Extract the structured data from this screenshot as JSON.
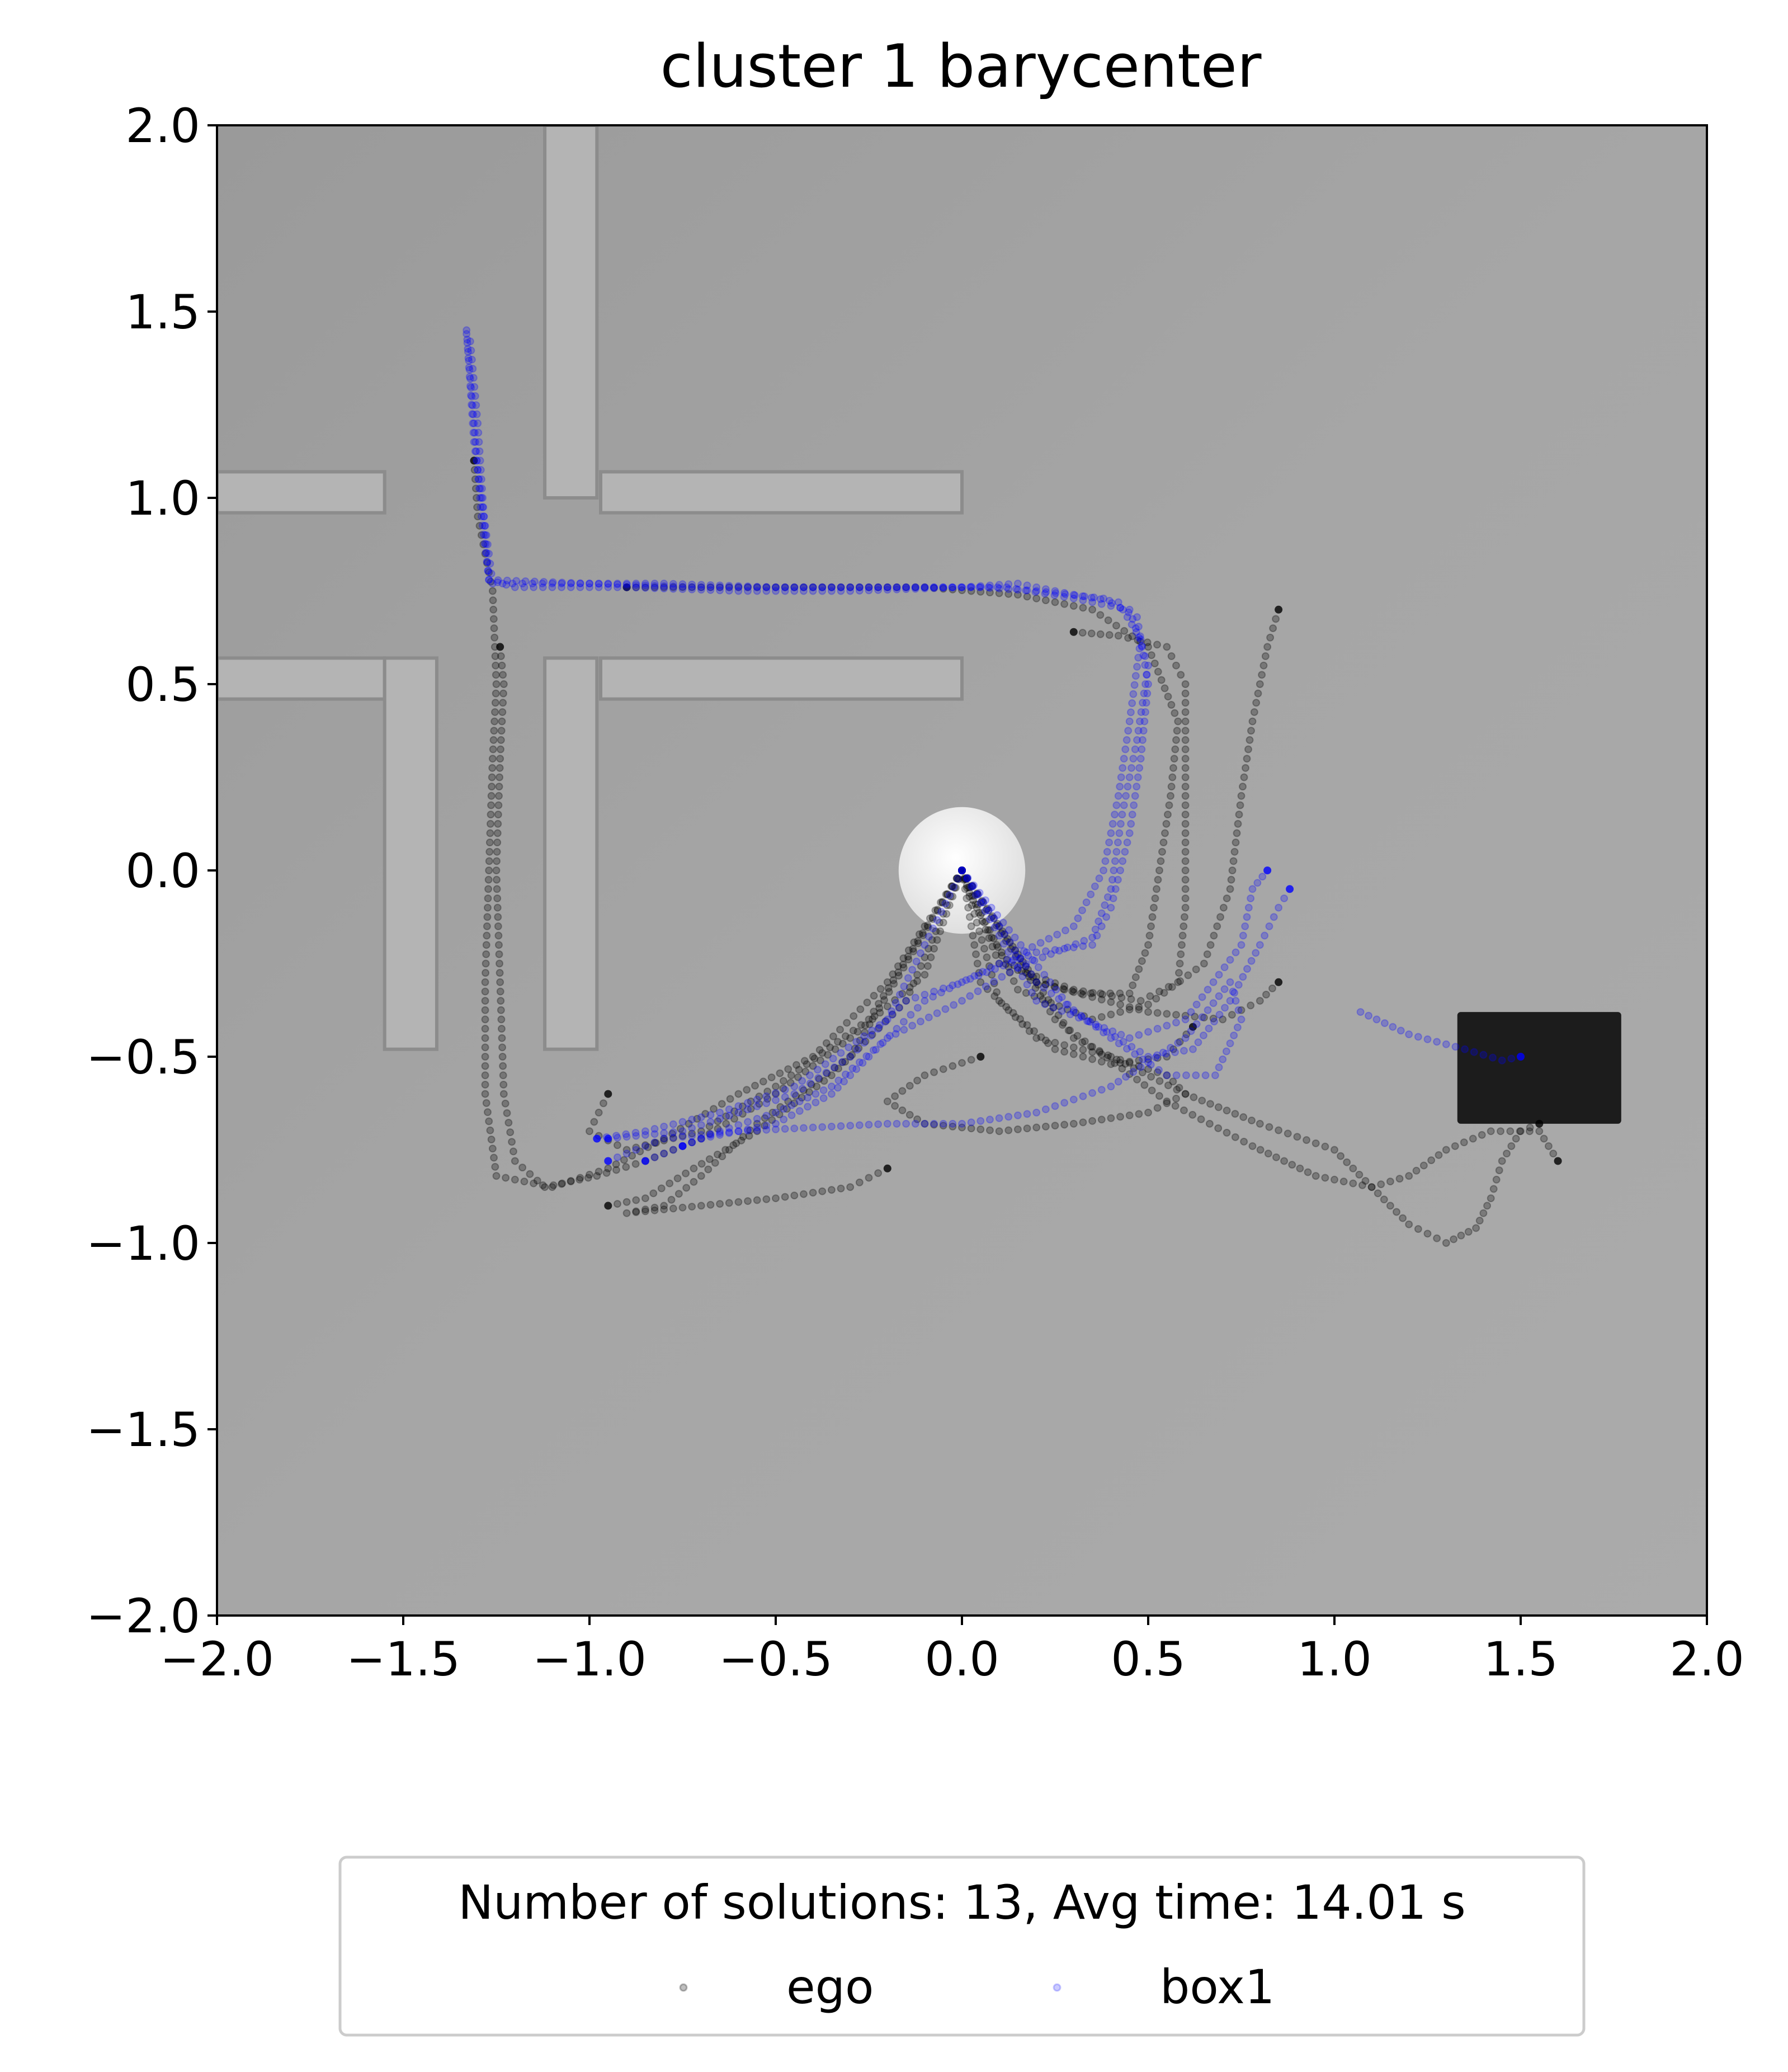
{
  "chart_data": {
    "type": "scatter",
    "title": "cluster 1 barycenter",
    "xlim": [
      -2.0,
      2.0
    ],
    "ylim": [
      -2.0,
      2.0
    ],
    "xticks": [
      "−2.0",
      "−1.5",
      "−1.0",
      "−0.5",
      "0.0",
      "0.5",
      "1.0",
      "1.5",
      "2.0"
    ],
    "yticks": [
      "2.0",
      "1.5",
      "1.0",
      "0.5",
      "0.0",
      "−0.5",
      "−1.0",
      "−1.5",
      "−2.0"
    ],
    "xtick_values": [
      -2.0,
      -1.5,
      -1.0,
      -0.5,
      0.0,
      0.5,
      1.0,
      1.5,
      2.0
    ],
    "ytick_values": [
      2.0,
      1.5,
      1.0,
      0.5,
      0.0,
      -0.5,
      -1.0,
      -1.5,
      -2.0
    ],
    "grid": false,
    "legend_position": "bottom-center",
    "legend_title": "Number of solutions: 13, Avg time: 14.01 s",
    "series": [
      {
        "name": "ego",
        "color": "#000000",
        "trajectories": [
          [
            [
              0.0,
              0.0
            ],
            [
              0.02,
              -0.06
            ],
            [
              0.05,
              -0.12
            ],
            [
              0.08,
              -0.18
            ],
            [
              0.12,
              -0.24
            ],
            [
              0.2,
              -0.3
            ],
            [
              0.32,
              -0.33
            ],
            [
              0.45,
              -0.33
            ],
            [
              0.5,
              -0.2
            ],
            [
              0.53,
              0.0
            ],
            [
              0.56,
              0.2
            ],
            [
              0.58,
              0.4
            ],
            [
              0.5,
              0.6
            ],
            [
              0.35,
              0.7
            ],
            [
              0.15,
              0.74
            ],
            [
              -0.1,
              0.76
            ],
            [
              -0.4,
              0.76
            ],
            [
              -0.7,
              0.76
            ],
            [
              -0.9,
              0.76
            ]
          ],
          [
            [
              0.0,
              0.0
            ],
            [
              0.1,
              -0.25
            ],
            [
              0.3,
              -0.32
            ],
            [
              0.48,
              -0.35
            ],
            [
              0.58,
              -0.3
            ],
            [
              0.6,
              -0.1
            ],
            [
              0.6,
              0.1
            ],
            [
              0.6,
              0.3
            ],
            [
              0.6,
              0.5
            ],
            [
              0.55,
              0.6
            ],
            [
              0.42,
              0.63
            ],
            [
              0.3,
              0.64
            ]
          ],
          [
            [
              0.0,
              0.0
            ],
            [
              -0.1,
              -0.28
            ],
            [
              -0.3,
              -0.45
            ],
            [
              -0.5,
              -0.6
            ],
            [
              -0.7,
              -0.72
            ],
            [
              -0.85,
              -0.78
            ],
            [
              -0.98,
              -0.82
            ],
            [
              -1.12,
              -0.85
            ],
            [
              -1.2,
              -0.78
            ],
            [
              -1.23,
              -0.6
            ],
            [
              -1.24,
              -0.3
            ],
            [
              -1.25,
              0.0
            ],
            [
              -1.24,
              0.3
            ],
            [
              -1.23,
              0.5
            ],
            [
              -1.24,
              0.6
            ]
          ],
          [
            [
              0.0,
              0.0
            ],
            [
              -0.2,
              -0.3
            ],
            [
              -0.4,
              -0.5
            ],
            [
              -0.6,
              -0.6
            ],
            [
              -0.8,
              -0.72
            ],
            [
              -0.95,
              -0.8
            ],
            [
              -1.1,
              -0.85
            ],
            [
              -1.25,
              -0.82
            ],
            [
              -1.28,
              -0.6
            ],
            [
              -1.28,
              -0.3
            ],
            [
              -1.27,
              0.0
            ],
            [
              -1.26,
              0.3
            ],
            [
              -1.25,
              0.5
            ],
            [
              -1.26,
              0.75
            ],
            [
              -1.3,
              0.95
            ],
            [
              -1.31,
              1.1
            ]
          ],
          [
            [
              0.0,
              0.0
            ],
            [
              0.05,
              -0.3
            ],
            [
              0.2,
              -0.45
            ],
            [
              0.4,
              -0.5
            ],
            [
              0.55,
              -0.55
            ],
            [
              0.6,
              -0.6
            ],
            [
              0.5,
              -0.65
            ],
            [
              0.3,
              -0.68
            ],
            [
              0.1,
              -0.7
            ],
            [
              -0.1,
              -0.68
            ],
            [
              -0.2,
              -0.62
            ],
            [
              -0.1,
              -0.55
            ],
            [
              0.05,
              -0.5
            ]
          ],
          [
            [
              0.0,
              0.0
            ],
            [
              0.2,
              -0.3
            ],
            [
              0.5,
              -0.38
            ],
            [
              0.7,
              -0.4
            ],
            [
              0.8,
              -0.35
            ],
            [
              0.85,
              -0.3
            ]
          ],
          [
            [
              0.0,
              0.0
            ],
            [
              -0.3,
              -0.5
            ],
            [
              -0.55,
              -0.68
            ],
            [
              -0.7,
              -0.82
            ],
            [
              -0.8,
              -0.9
            ],
            [
              -0.9,
              -0.92
            ],
            [
              -0.7,
              -0.9
            ],
            [
              -0.5,
              -0.88
            ],
            [
              -0.3,
              -0.85
            ],
            [
              -0.2,
              -0.8
            ]
          ],
          [
            [
              0.0,
              0.0
            ],
            [
              0.3,
              -0.45
            ],
            [
              0.6,
              -0.6
            ],
            [
              0.8,
              -0.68
            ],
            [
              1.0,
              -0.75
            ],
            [
              1.1,
              -0.85
            ],
            [
              1.2,
              -0.95
            ],
            [
              1.3,
              -1.0
            ],
            [
              1.38,
              -0.96
            ],
            [
              1.42,
              -0.88
            ],
            [
              1.45,
              -0.78
            ],
            [
              1.5,
              -0.7
            ],
            [
              1.55,
              -0.68
            ]
          ],
          [
            [
              0.0,
              0.0
            ],
            [
              0.25,
              -0.4
            ],
            [
              0.55,
              -0.62
            ],
            [
              0.78,
              -0.74
            ],
            [
              0.95,
              -0.82
            ],
            [
              1.1,
              -0.85
            ],
            [
              1.2,
              -0.82
            ],
            [
              1.3,
              -0.75
            ],
            [
              1.42,
              -0.7
            ],
            [
              1.55,
              -0.7
            ],
            [
              1.6,
              -0.78
            ]
          ],
          [
            [
              0.0,
              0.0
            ],
            [
              -0.15,
              -0.35
            ],
            [
              -0.35,
              -0.55
            ],
            [
              -0.55,
              -0.7
            ],
            [
              -0.72,
              -0.8
            ],
            [
              -0.85,
              -0.88
            ],
            [
              -0.95,
              -0.9
            ]
          ],
          [
            [
              0.0,
              0.0
            ],
            [
              0.15,
              -0.32
            ],
            [
              0.35,
              -0.4
            ],
            [
              0.5,
              -0.36
            ],
            [
              0.65,
              -0.25
            ],
            [
              0.72,
              -0.05
            ],
            [
              0.75,
              0.2
            ],
            [
              0.78,
              0.4
            ],
            [
              0.82,
              0.6
            ],
            [
              0.85,
              0.7
            ]
          ],
          [
            [
              0.0,
              0.0
            ],
            [
              -0.25,
              -0.4
            ],
            [
              -0.5,
              -0.58
            ],
            [
              -0.7,
              -0.7
            ],
            [
              -0.9,
              -0.75
            ],
            [
              -1.0,
              -0.7
            ],
            [
              -0.95,
              -0.6
            ]
          ],
          [
            [
              0.0,
              0.0
            ],
            [
              0.1,
              -0.35
            ],
            [
              0.25,
              -0.48
            ],
            [
              0.4,
              -0.52
            ],
            [
              0.55,
              -0.5
            ],
            [
              0.62,
              -0.42
            ]
          ]
        ]
      },
      {
        "name": "box1",
        "color": "#0000ff",
        "trajectories": [
          [
            [
              -1.33,
              1.45
            ],
            [
              -1.32,
              1.3
            ],
            [
              -1.31,
              1.15
            ],
            [
              -1.29,
              1.0
            ],
            [
              -1.27,
              0.85
            ],
            [
              -1.26,
              0.77
            ],
            [
              -1.1,
              0.77
            ],
            [
              -0.8,
              0.77
            ],
            [
              -0.5,
              0.76
            ],
            [
              -0.2,
              0.76
            ],
            [
              0.05,
              0.76
            ],
            [
              0.2,
              0.75
            ],
            [
              0.38,
              0.73
            ],
            [
              0.47,
              0.68
            ],
            [
              0.5,
              0.5
            ],
            [
              0.48,
              0.3
            ],
            [
              0.45,
              0.1
            ],
            [
              0.4,
              -0.1
            ],
            [
              0.35,
              -0.2
            ],
            [
              0.2,
              -0.22
            ],
            [
              0.0,
              -0.3
            ],
            [
              -0.15,
              -0.35
            ],
            [
              -0.3,
              -0.5
            ],
            [
              -0.45,
              -0.6
            ],
            [
              -0.6,
              -0.65
            ],
            [
              -0.75,
              -0.7
            ],
            [
              -0.95,
              -0.72
            ]
          ],
          [
            [
              -1.33,
              1.44
            ],
            [
              -1.31,
              1.2
            ],
            [
              -1.29,
              0.95
            ],
            [
              -1.27,
              0.78
            ],
            [
              -1.2,
              0.76
            ],
            [
              -0.9,
              0.76
            ],
            [
              -0.6,
              0.75
            ],
            [
              -0.3,
              0.75
            ],
            [
              0.0,
              0.76
            ],
            [
              0.15,
              0.77
            ],
            [
              0.3,
              0.74
            ],
            [
              0.42,
              0.72
            ],
            [
              0.48,
              0.62
            ],
            [
              0.45,
              0.4
            ],
            [
              0.42,
              0.2
            ],
            [
              0.38,
              0.0
            ],
            [
              0.3,
              -0.15
            ],
            [
              0.1,
              -0.25
            ],
            [
              -0.1,
              -0.35
            ],
            [
              -0.25,
              -0.5
            ],
            [
              -0.35,
              -0.6
            ],
            [
              -0.5,
              -0.68
            ],
            [
              -0.7,
              -0.72
            ],
            [
              -0.85,
              -0.78
            ]
          ],
          [
            [
              -1.32,
              1.42
            ],
            [
              -1.3,
              1.2
            ],
            [
              -1.28,
              0.9
            ],
            [
              -1.27,
              0.78
            ],
            [
              -1.0,
              0.77
            ],
            [
              -0.7,
              0.76
            ],
            [
              -0.4,
              0.76
            ],
            [
              -0.1,
              0.76
            ],
            [
              0.12,
              0.76
            ],
            [
              0.3,
              0.73
            ],
            [
              0.45,
              0.7
            ],
            [
              0.5,
              0.55
            ],
            [
              0.47,
              0.35
            ],
            [
              0.43,
              0.15
            ],
            [
              0.4,
              -0.05
            ],
            [
              0.35,
              -0.18
            ],
            [
              0.15,
              -0.26
            ],
            [
              0.0,
              -0.35
            ],
            [
              -0.2,
              -0.45
            ],
            [
              -0.35,
              -0.58
            ],
            [
              -0.5,
              -0.65
            ],
            [
              -0.65,
              -0.7
            ],
            [
              -0.75,
              -0.74
            ]
          ],
          [
            [
              0.0,
              0.0
            ],
            [
              0.2,
              -0.3
            ],
            [
              0.4,
              -0.45
            ],
            [
              0.55,
              -0.55
            ],
            [
              0.68,
              -0.55
            ],
            [
              0.75,
              -0.4
            ],
            [
              0.72,
              -0.3
            ],
            [
              0.6,
              -0.45
            ],
            [
              0.4,
              -0.58
            ],
            [
              0.2,
              -0.65
            ],
            [
              0.0,
              -0.68
            ],
            [
              -0.2,
              -0.68
            ],
            [
              -0.4,
              -0.69
            ],
            [
              -0.6,
              -0.7
            ],
            [
              -0.8,
              -0.72
            ],
            [
              -0.95,
              -0.78
            ]
          ],
          [
            [
              0.0,
              0.0
            ],
            [
              0.3,
              -0.38
            ],
            [
              0.5,
              -0.5
            ],
            [
              0.62,
              -0.48
            ],
            [
              0.72,
              -0.35
            ],
            [
              0.8,
              -0.2
            ],
            [
              0.85,
              -0.1
            ],
            [
              0.88,
              -0.05
            ]
          ],
          [
            [
              1.07,
              -0.38
            ],
            [
              1.2,
              -0.44
            ],
            [
              1.35,
              -0.48
            ],
            [
              1.45,
              -0.51
            ],
            [
              1.5,
              -0.5
            ]
          ],
          [
            [
              0.0,
              0.0
            ],
            [
              0.2,
              -0.35
            ],
            [
              0.45,
              -0.45
            ],
            [
              0.6,
              -0.4
            ],
            [
              0.75,
              -0.2
            ],
            [
              0.78,
              -0.05
            ],
            [
              0.82,
              0.0
            ]
          ],
          [
            [
              0.0,
              0.0
            ],
            [
              -0.2,
              -0.4
            ],
            [
              -0.45,
              -0.58
            ],
            [
              -0.65,
              -0.65
            ],
            [
              -0.85,
              -0.7
            ],
            [
              -0.98,
              -0.72
            ]
          ]
        ]
      }
    ],
    "annotations": []
  },
  "scene": {
    "circle_obstacle_center": [
      0.0,
      0.0
    ],
    "circle_obstacle_radius": 0.17,
    "dark_box_center": [
      1.55,
      -0.53
    ],
    "dark_box_half_size": [
      0.22,
      0.15
    ],
    "colors": {
      "background": "#a4a4a4",
      "wall_top": "#b4b4b4",
      "wall_side": "#8c8c8c",
      "dark_box": "#1c1c1c",
      "circle": "#f0f0f0",
      "ego": "#000000",
      "box1": "#0000ff",
      "frame": "#000000",
      "legend_border": "#cccccc"
    }
  }
}
